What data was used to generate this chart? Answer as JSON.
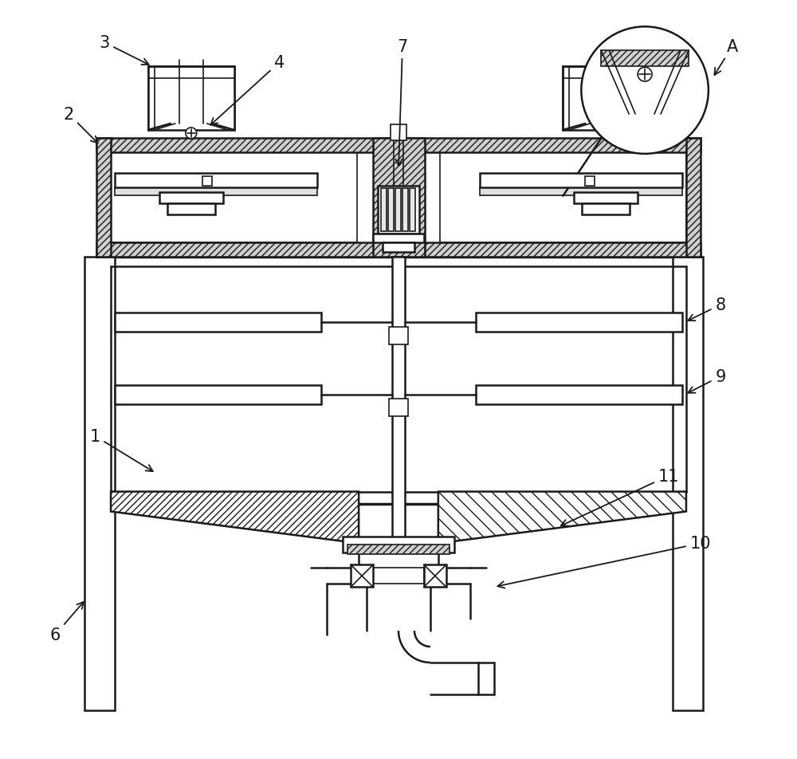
{
  "bg_color": "#ffffff",
  "line_color": "#1a1a1a",
  "fig_width": 10.0,
  "fig_height": 9.53
}
